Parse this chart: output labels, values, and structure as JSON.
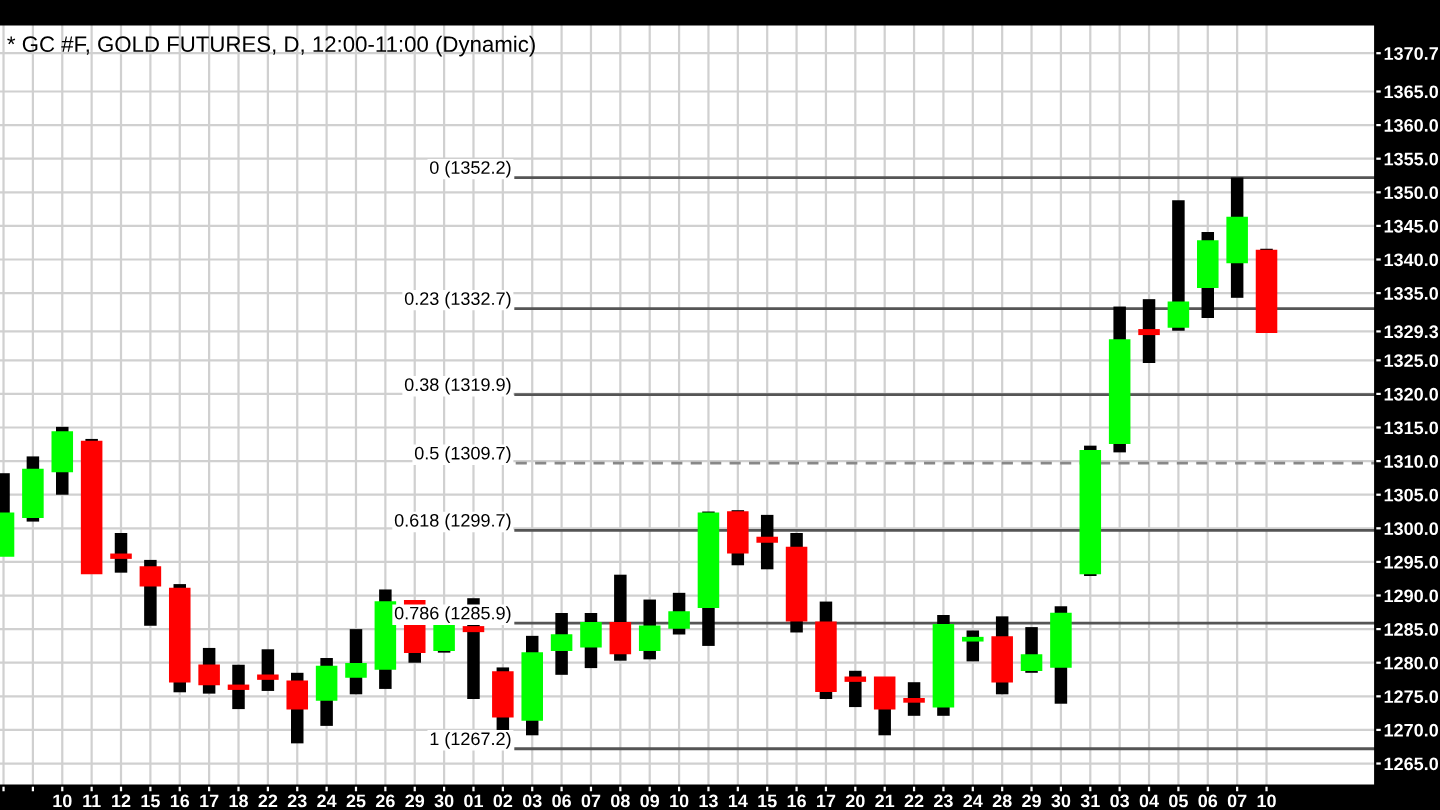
{
  "chart_data": {
    "type": "candlestick",
    "title": "* GC #F, GOLD FUTURES, D, 12:00-11:00 (Dynamic)",
    "categories": [
      null,
      null,
      "10",
      "11",
      "12",
      "15",
      "16",
      "17",
      "18",
      "22",
      "23",
      "24",
      "25",
      "26",
      "29",
      "30",
      "01",
      "02",
      "03",
      "06",
      "07",
      "08",
      "09",
      "10",
      "13",
      "14",
      "15",
      "16",
      "17",
      "20",
      "21",
      "22",
      "23",
      "24",
      "28",
      "29",
      "30",
      "31",
      "03",
      "04",
      "05",
      "06",
      "07",
      "10"
    ],
    "ohlc": [
      [
        1296.0,
        1308.2,
        1296.0,
        1302.1
      ],
      [
        1301.8,
        1310.7,
        1301.0,
        1308.6
      ],
      [
        1308.6,
        1315.1,
        1305.0,
        1314.2
      ],
      [
        1312.8,
        1313.3,
        1293.2,
        1293.4
      ],
      [
        1296.0,
        1299.3,
        1293.4,
        1295.7
      ],
      [
        1294.1,
        1295.3,
        1285.5,
        1291.6
      ],
      [
        1290.9,
        1291.7,
        1275.6,
        1277.3
      ],
      [
        1279.5,
        1282.2,
        1275.4,
        1276.9
      ],
      [
        1276.5,
        1279.7,
        1273.1,
        1276.2
      ],
      [
        1278.0,
        1282.0,
        1275.8,
        1277.7
      ],
      [
        1277.1,
        1278.5,
        1268.0,
        1273.3
      ],
      [
        1274.6,
        1280.7,
        1270.6,
        1279.3
      ],
      [
        1278.0,
        1285.0,
        1275.3,
        1279.7
      ],
      [
        1279.2,
        1290.9,
        1276.1,
        1288.9
      ],
      [
        1289.1,
        1289.2,
        1280.0,
        1281.7
      ],
      [
        1282.0,
        1285.8,
        1281.5,
        1285.8
      ],
      [
        1285.2,
        1289.6,
        1274.6,
        1284.8
      ],
      [
        1278.5,
        1279.3,
        1267.2,
        1272.1
      ],
      [
        1271.6,
        1284.0,
        1269.2,
        1281.3
      ],
      [
        1282.0,
        1287.4,
        1278.2,
        1284.0
      ],
      [
        1282.5,
        1287.4,
        1279.2,
        1285.8
      ],
      [
        1285.8,
        1293.1,
        1280.3,
        1281.5
      ],
      [
        1282.0,
        1289.4,
        1280.5,
        1285.3
      ],
      [
        1285.3,
        1290.4,
        1284.2,
        1287.4
      ],
      [
        1288.4,
        1302.5,
        1282.5,
        1302.1
      ],
      [
        1302.3,
        1302.7,
        1294.5,
        1296.5
      ],
      [
        1298.5,
        1302.0,
        1293.9,
        1298.1
      ],
      [
        1297.0,
        1299.3,
        1284.5,
        1286.4
      ],
      [
        1285.9,
        1289.1,
        1274.6,
        1275.9
      ],
      [
        1277.7,
        1278.8,
        1273.4,
        1277.4
      ],
      [
        1277.7,
        1277.7,
        1269.2,
        1273.3
      ],
      [
        1274.5,
        1277.1,
        1272.1,
        1274.3
      ],
      [
        1273.6,
        1287.1,
        1272.1,
        1285.5
      ],
      [
        1283.4,
        1284.8,
        1280.2,
        1283.6
      ],
      [
        1283.7,
        1286.9,
        1275.3,
        1277.3
      ],
      [
        1279.0,
        1285.3,
        1278.5,
        1281.0
      ],
      [
        1279.5,
        1288.4,
        1273.9,
        1287.2
      ],
      [
        1293.4,
        1312.3,
        1292.9,
        1311.4
      ],
      [
        1312.8,
        1333.0,
        1311.3,
        1327.9
      ],
      [
        1329.4,
        1334.1,
        1324.6,
        1329.0
      ],
      [
        1330.1,
        1348.8,
        1329.4,
        1333.5
      ],
      [
        1336.0,
        1344.1,
        1331.3,
        1342.6
      ],
      [
        1339.7,
        1352.2,
        1334.3,
        1346.1
      ],
      [
        1341.2,
        1341.6,
        1329.1,
        1329.3
      ]
    ],
    "colors": [
      "#00ff00",
      "#00ff00",
      "#00ff00",
      "#ff0000",
      "#ff0000",
      "#ff0000",
      "#ff0000",
      "#ff0000",
      "#ff0000",
      "#ff0000",
      "#ff0000",
      "#00ff00",
      "#00ff00",
      "#00ff00",
      "#ff0000",
      "#00ff00",
      "#ff0000",
      "#ff0000",
      "#00ff00",
      "#00ff00",
      "#00ff00",
      "#ff0000",
      "#00ff00",
      "#00ff00",
      "#00ff00",
      "#ff0000",
      "#ff0000",
      "#ff0000",
      "#ff0000",
      "#ff0000",
      "#ff0000",
      "#ff0000",
      "#00ff00",
      "#00ff00",
      "#ff0000",
      "#00ff00",
      "#00ff00",
      "#00ff00",
      "#00ff00",
      "#ff0000",
      "#00ff00",
      "#00ff00",
      "#00ff00",
      "#ff0000"
    ],
    "ylim": [
      1261.7,
      1375.0
    ],
    "yticks": [
      {
        "value": 1265,
        "label": "1265.0"
      },
      {
        "value": 1270,
        "label": "1270.0"
      },
      {
        "value": 1275,
        "label": "1275.0"
      },
      {
        "value": 1280,
        "label": "1280.0"
      },
      {
        "value": 1285,
        "label": "1285.0"
      },
      {
        "value": 1290,
        "label": "1290.0"
      },
      {
        "value": 1295,
        "label": "1295.0"
      },
      {
        "value": 1300,
        "label": "1300.0"
      },
      {
        "value": 1305,
        "label": "1305.0"
      },
      {
        "value": 1310,
        "label": "1310.0"
      },
      {
        "value": 1315,
        "label": "1315.0"
      },
      {
        "value": 1320,
        "label": "1320.0"
      },
      {
        "value": 1325,
        "label": "1325.0"
      },
      {
        "value": 1329.3,
        "label": "1329.3"
      },
      {
        "value": 1335,
        "label": "1335.0"
      },
      {
        "value": 1340,
        "label": "1340.0"
      },
      {
        "value": 1345,
        "label": "1345.0"
      },
      {
        "value": 1350,
        "label": "1350.0"
      },
      {
        "value": 1355,
        "label": "1355.0"
      },
      {
        "value": 1360,
        "label": "1360.0"
      },
      {
        "value": 1365,
        "label": "1365.0"
      },
      {
        "value": 1370.7,
        "label": "1370.7"
      }
    ],
    "ref_lines": [
      {
        "axis": "y",
        "value": 1352.2,
        "label": "0 (1352.2)",
        "color": "#555555",
        "line_style": "solid"
      },
      {
        "axis": "y",
        "value": 1332.7,
        "label": "0.23 (1332.7)",
        "color": "#555555",
        "line_style": "solid"
      },
      {
        "axis": "y",
        "value": 1319.9,
        "label": "0.38 (1319.9)",
        "color": "#555555",
        "line_style": "solid"
      },
      {
        "axis": "y",
        "value": 1309.7,
        "label": "0.5 (1309.7)",
        "color": "#888888",
        "line_style": "dashed"
      },
      {
        "axis": "y",
        "value": 1299.7,
        "label": "0.618 (1299.7)",
        "color": "#555555",
        "line_style": "solid"
      },
      {
        "axis": "y",
        "value": 1285.9,
        "label": "0.786 (1285.9)",
        "color": "#555555",
        "line_style": "solid"
      },
      {
        "axis": "y",
        "value": 1267.2,
        "label": "1 (1267.2)",
        "color": "#555555",
        "line_style": "solid"
      }
    ],
    "grid": true
  }
}
